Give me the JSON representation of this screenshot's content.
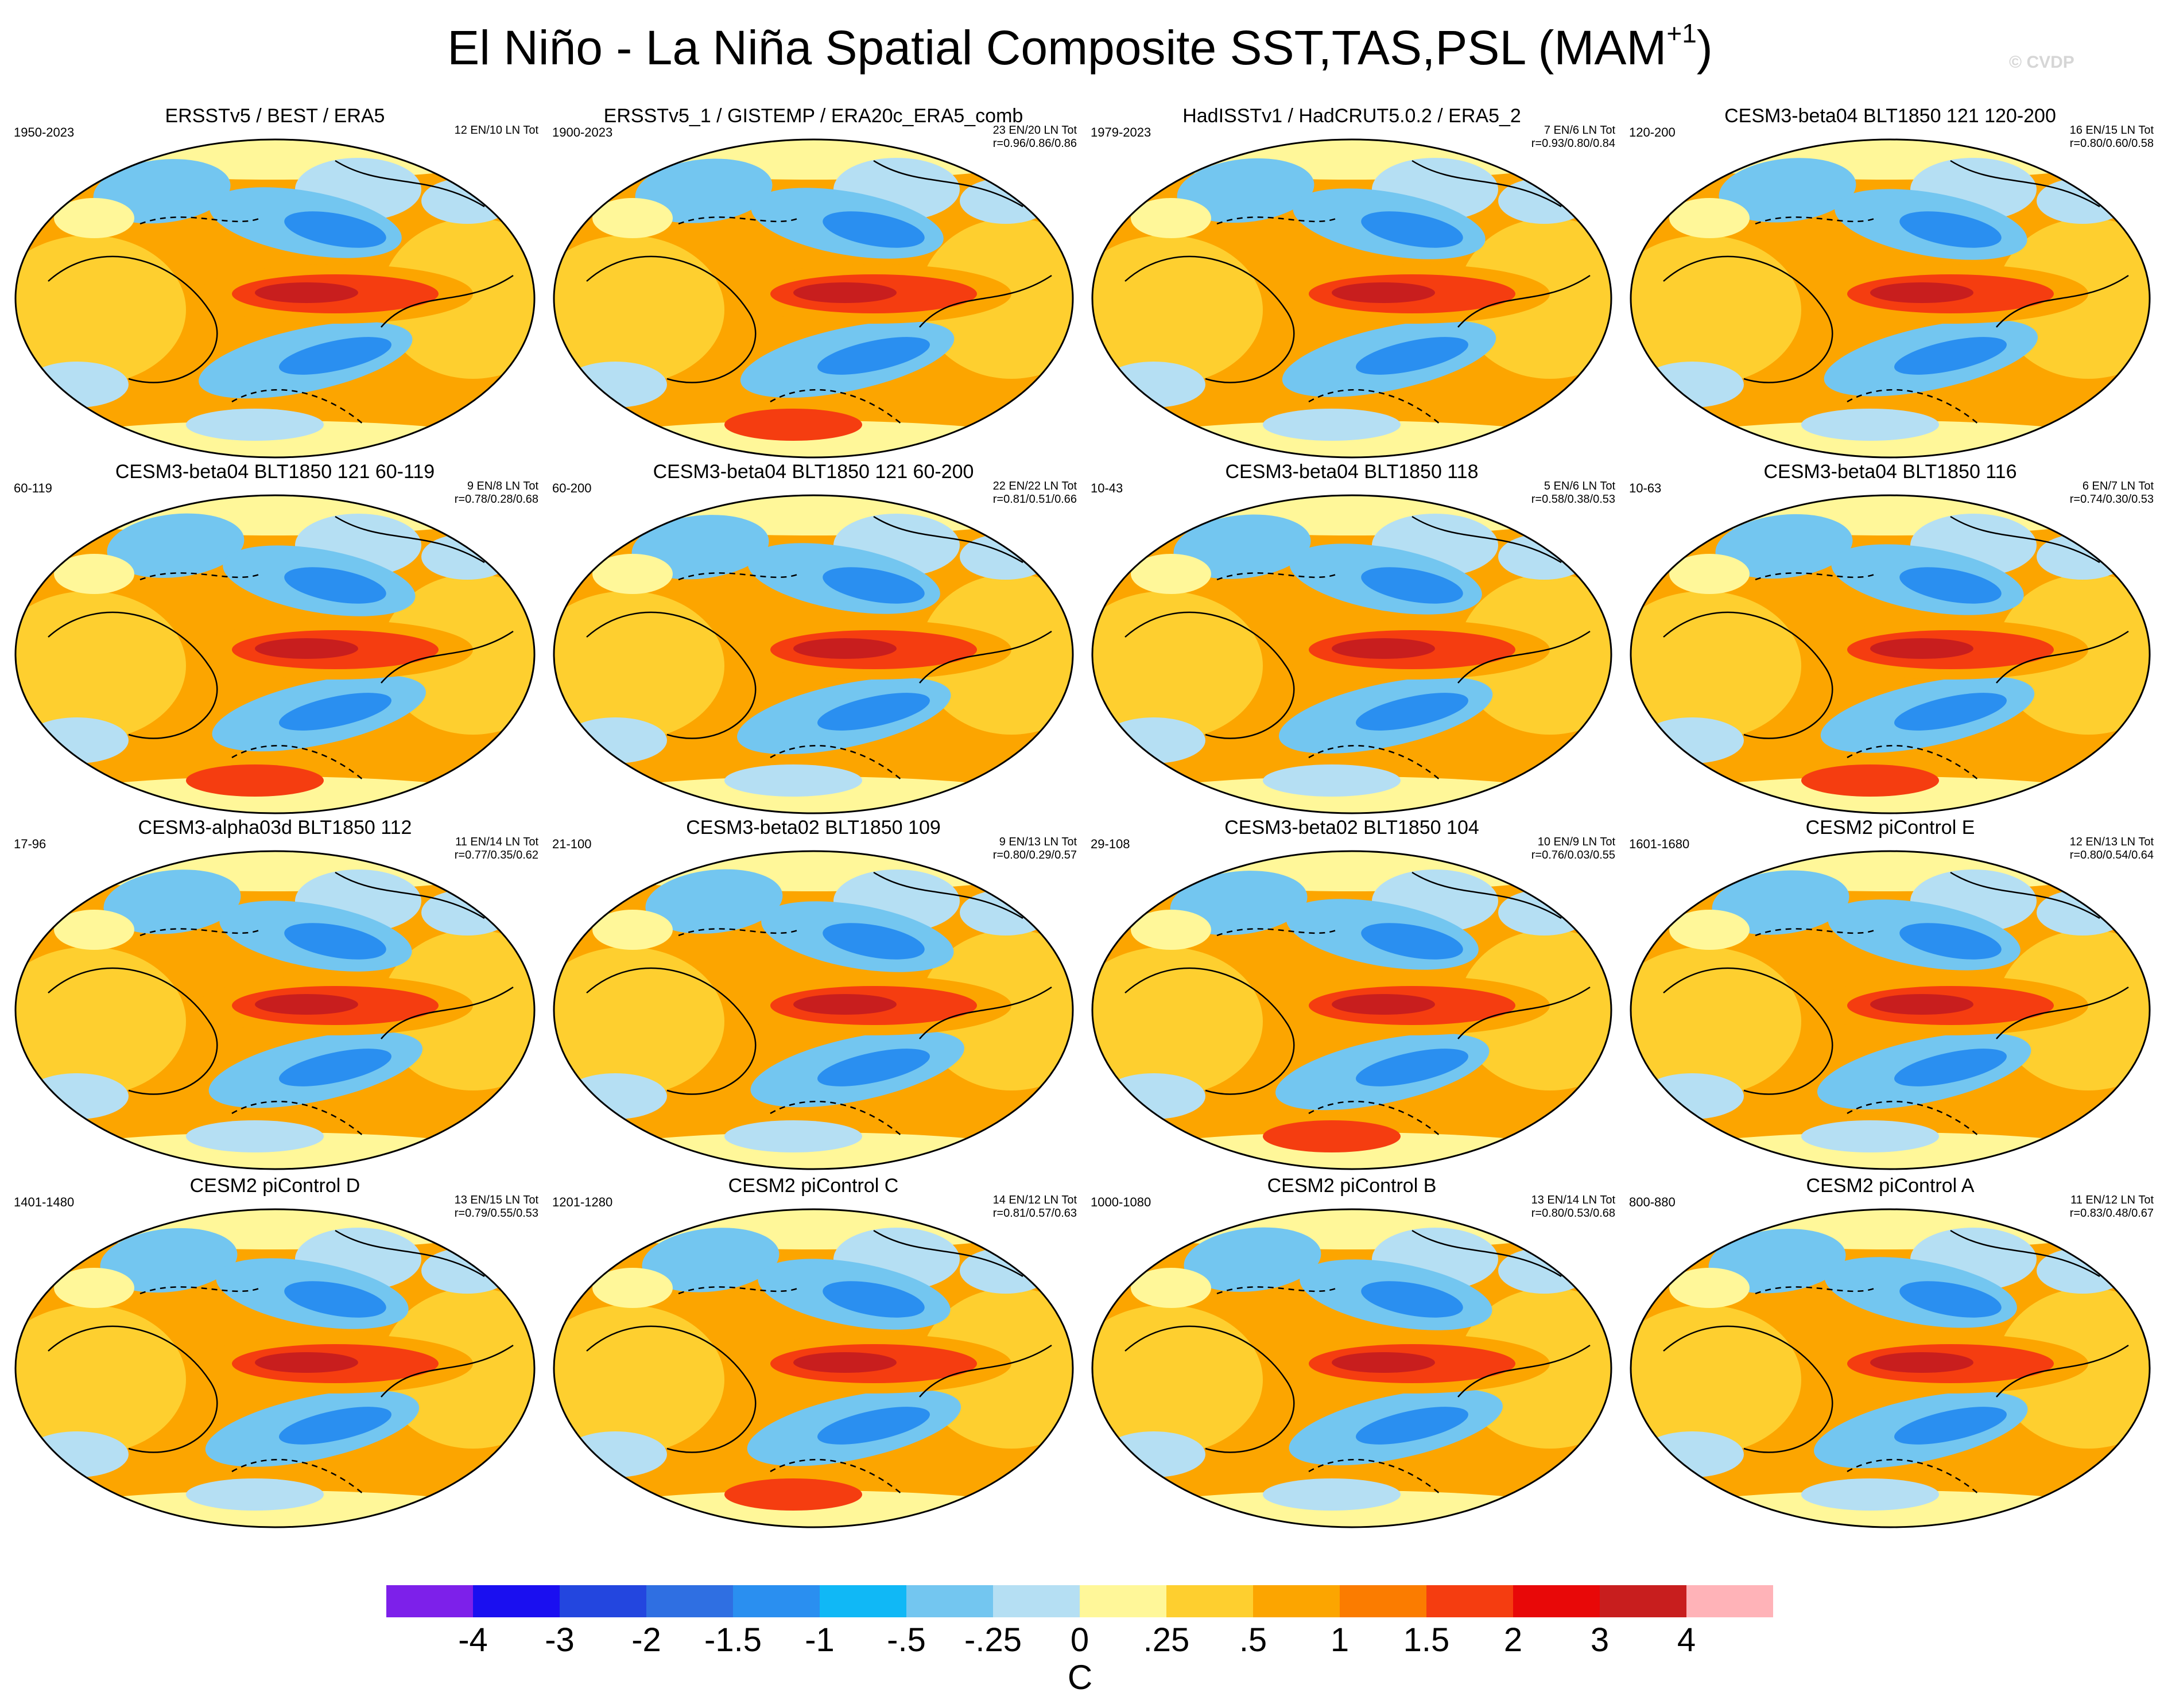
{
  "figure": {
    "title": "El Niño - La Niña Spatial Composite SST,TAS,PSL (MAM",
    "title_sup": "+1",
    "title_end": ")",
    "watermark": "© CVDP"
  },
  "panels": [
    {
      "title": "ERSSTv5 / BEST / ERA5",
      "years": "1950-2023",
      "count": "12 EN/10 LN Tot",
      "stats": ""
    },
    {
      "title": "ERSSTv5_1 / GISTEMP / ERA20c_ERA5_comb",
      "years": "1900-2023",
      "count": "23 EN/20 LN Tot",
      "stats": "r=0.96/0.86/0.86"
    },
    {
      "title": "HadISSTv1 / HadCRUT5.0.2 / ERA5_2",
      "years": "1979-2023",
      "count": "7 EN/6 LN Tot",
      "stats": "r=0.93/0.80/0.84"
    },
    {
      "title": "CESM3-beta04 BLT1850 121 120-200",
      "years": "120-200",
      "count": "16 EN/15 LN Tot",
      "stats": "r=0.80/0.60/0.58"
    },
    {
      "title": "CESM3-beta04 BLT1850 121 60-119",
      "years": "60-119",
      "count": "9 EN/8 LN Tot",
      "stats": "r=0.78/0.28/0.68"
    },
    {
      "title": "CESM3-beta04 BLT1850 121 60-200",
      "years": "60-200",
      "count": "22 EN/22 LN Tot",
      "stats": "r=0.81/0.51/0.66"
    },
    {
      "title": "CESM3-beta04 BLT1850 118",
      "years": "10-43",
      "count": "5 EN/6 LN Tot",
      "stats": "r=0.58/0.38/0.53"
    },
    {
      "title": "CESM3-beta04 BLT1850 116",
      "years": "10-63",
      "count": "6 EN/7 LN Tot",
      "stats": "r=0.74/0.30/0.53"
    },
    {
      "title": "CESM3-alpha03d BLT1850 112",
      "years": "17-96",
      "count": "11 EN/14 LN Tot",
      "stats": "r=0.77/0.35/0.62"
    },
    {
      "title": "CESM3-beta02 BLT1850 109",
      "years": "21-100",
      "count": "9 EN/13 LN Tot",
      "stats": "r=0.80/0.29/0.57"
    },
    {
      "title": "CESM3-beta02 BLT1850 104",
      "years": "29-108",
      "count": "10 EN/9 LN Tot",
      "stats": "r=0.76/0.03/0.55"
    },
    {
      "title": "CESM2 piControl E",
      "years": "1601-1680",
      "count": "12 EN/13 LN Tot",
      "stats": "r=0.80/0.54/0.64"
    },
    {
      "title": "CESM2 piControl D",
      "years": "1401-1480",
      "count": "13 EN/15 LN Tot",
      "stats": "r=0.79/0.55/0.53"
    },
    {
      "title": "CESM2 piControl C",
      "years": "1201-1280",
      "count": "14 EN/12 LN Tot",
      "stats": "r=0.81/0.57/0.63"
    },
    {
      "title": "CESM2 piControl B",
      "years": "1000-1080",
      "count": "13 EN/14 LN Tot",
      "stats": "r=0.80/0.53/0.68"
    },
    {
      "title": "CESM2 piControl A",
      "years": "800-880",
      "count": "11 EN/12 LN Tot",
      "stats": "r=0.83/0.48/0.67"
    }
  ],
  "colorbar": {
    "unit": "C",
    "ticks": [
      "-4",
      "-3",
      "-2",
      "-1.5",
      "-1",
      "-.5",
      "-.25",
      "0",
      ".25",
      ".5",
      "1",
      "1.5",
      "2",
      "3",
      "4"
    ],
    "colors": [
      "#7d20ea",
      "#1a0ff0",
      "#2346df",
      "#2f6fe2",
      "#2a8ff0",
      "#10b8f6",
      "#73c6f0",
      "#b5dff3",
      "#fff799",
      "#fecf2f",
      "#fca500",
      "#fb7c00",
      "#f53d10",
      "#e80808",
      "#c81e1e",
      "#ffb3b8"
    ]
  }
}
